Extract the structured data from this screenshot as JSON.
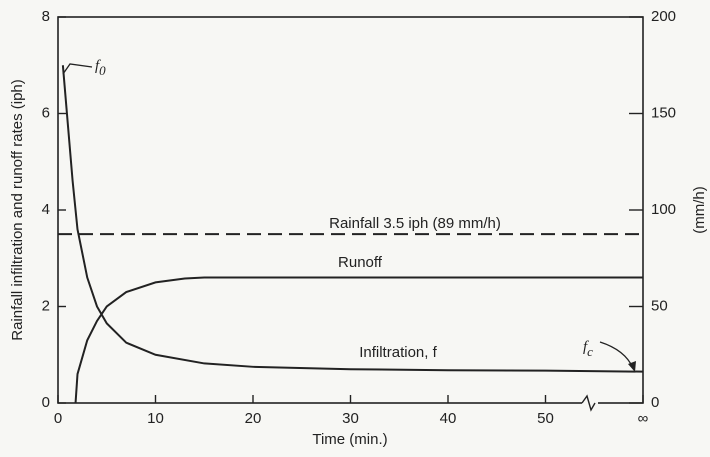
{
  "chart_data": {
    "type": "line",
    "xlabel": "Time (min.)",
    "ylabel": "Rainfall infiltration and runoff rates (iph)",
    "y2label": "(mm/h)",
    "xlim": [
      0,
      60
    ],
    "xticks": [
      0,
      10,
      20,
      30,
      40,
      50,
      {
        "value": 60,
        "label": "∞"
      }
    ],
    "ylim": [
      0,
      8
    ],
    "yticks": [
      0,
      2,
      4,
      6,
      8
    ],
    "y2lim": [
      0,
      200
    ],
    "y2ticks": [
      0,
      50,
      100,
      150,
      200
    ],
    "grid": false,
    "series": [
      {
        "name": "Rainfall 3.5 iph (89 mm/h)",
        "color": "#222",
        "dashed": true,
        "x": [
          0,
          60
        ],
        "values": [
          3.5,
          3.5
        ]
      },
      {
        "name": "Runoff",
        "color": "#222",
        "dashed": false,
        "x": [
          1.8,
          2,
          3,
          4,
          5,
          7,
          10,
          13,
          15,
          20,
          60
        ],
        "values": [
          0,
          0.6,
          1.3,
          1.7,
          2.0,
          2.3,
          2.5,
          2.58,
          2.6,
          2.6,
          2.6
        ]
      },
      {
        "name": "Infiltration, f",
        "color": "#222",
        "dashed": false,
        "x": [
          0.5,
          1,
          1.5,
          2,
          3,
          4,
          5,
          7,
          10,
          15,
          20,
          30,
          40,
          50,
          60
        ],
        "values": [
          7,
          5.8,
          4.6,
          3.6,
          2.6,
          2.0,
          1.65,
          1.25,
          1.0,
          0.82,
          0.75,
          0.7,
          0.68,
          0.67,
          0.65
        ]
      }
    ],
    "annotations": [
      {
        "text": "f",
        "sub": "0"
      },
      {
        "text": "f",
        "sub": "c"
      }
    ]
  }
}
